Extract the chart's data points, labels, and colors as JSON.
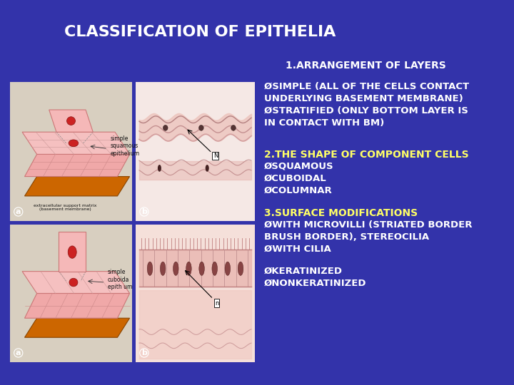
{
  "background_color": "#3333aa",
  "title": "CLASSIFICATION OF EPITHELIA",
  "title_color": "#ffffff",
  "title_fontsize": 16,
  "section1_header": "1.ARRANGEMENT OF LAYERS",
  "section1_bullet1a": "ØSIMPLE (ALL OF THE CELLS CONTACT",
  "section1_bullet1b": "UNDERLYING BASEMENT MEMBRANE)",
  "section1_bullet2a": "ØSTRATIFIED (ONLY BOTTOM LAYER IS",
  "section1_bullet2b": "IN CONTACT WITH BM)",
  "section2_header": "2.THE SHAPE OF COMPONENT CELLS",
  "section2_b1": "ØSQUAMOUS",
  "section2_b2": "ØCUBOIDAL",
  "section2_b3": "ØCOLUMNAR",
  "section3_header": "3.SURFACE MODIFICATIONS",
  "section3_b1a": "ØWITH MICROVILLI (STRIATED BORDER",
  "section3_b1b": "BRUSH BORDER), STEREOCILIA",
  "section3_b2": "ØWITH CILIA",
  "section4_b1": "ØKERATINIZED",
  "section4_b2": "ØNONKERATINIZED",
  "text_color": "#ffffff",
  "yellow_color": "#ffff66",
  "img1a_color": "#d8cfc0",
  "img1b_color": "#e8d5d0",
  "img2a_color": "#d8cfc0",
  "img2b_color": "#e8d5d0",
  "fs_small": 9.5,
  "fs_header": 10.0
}
